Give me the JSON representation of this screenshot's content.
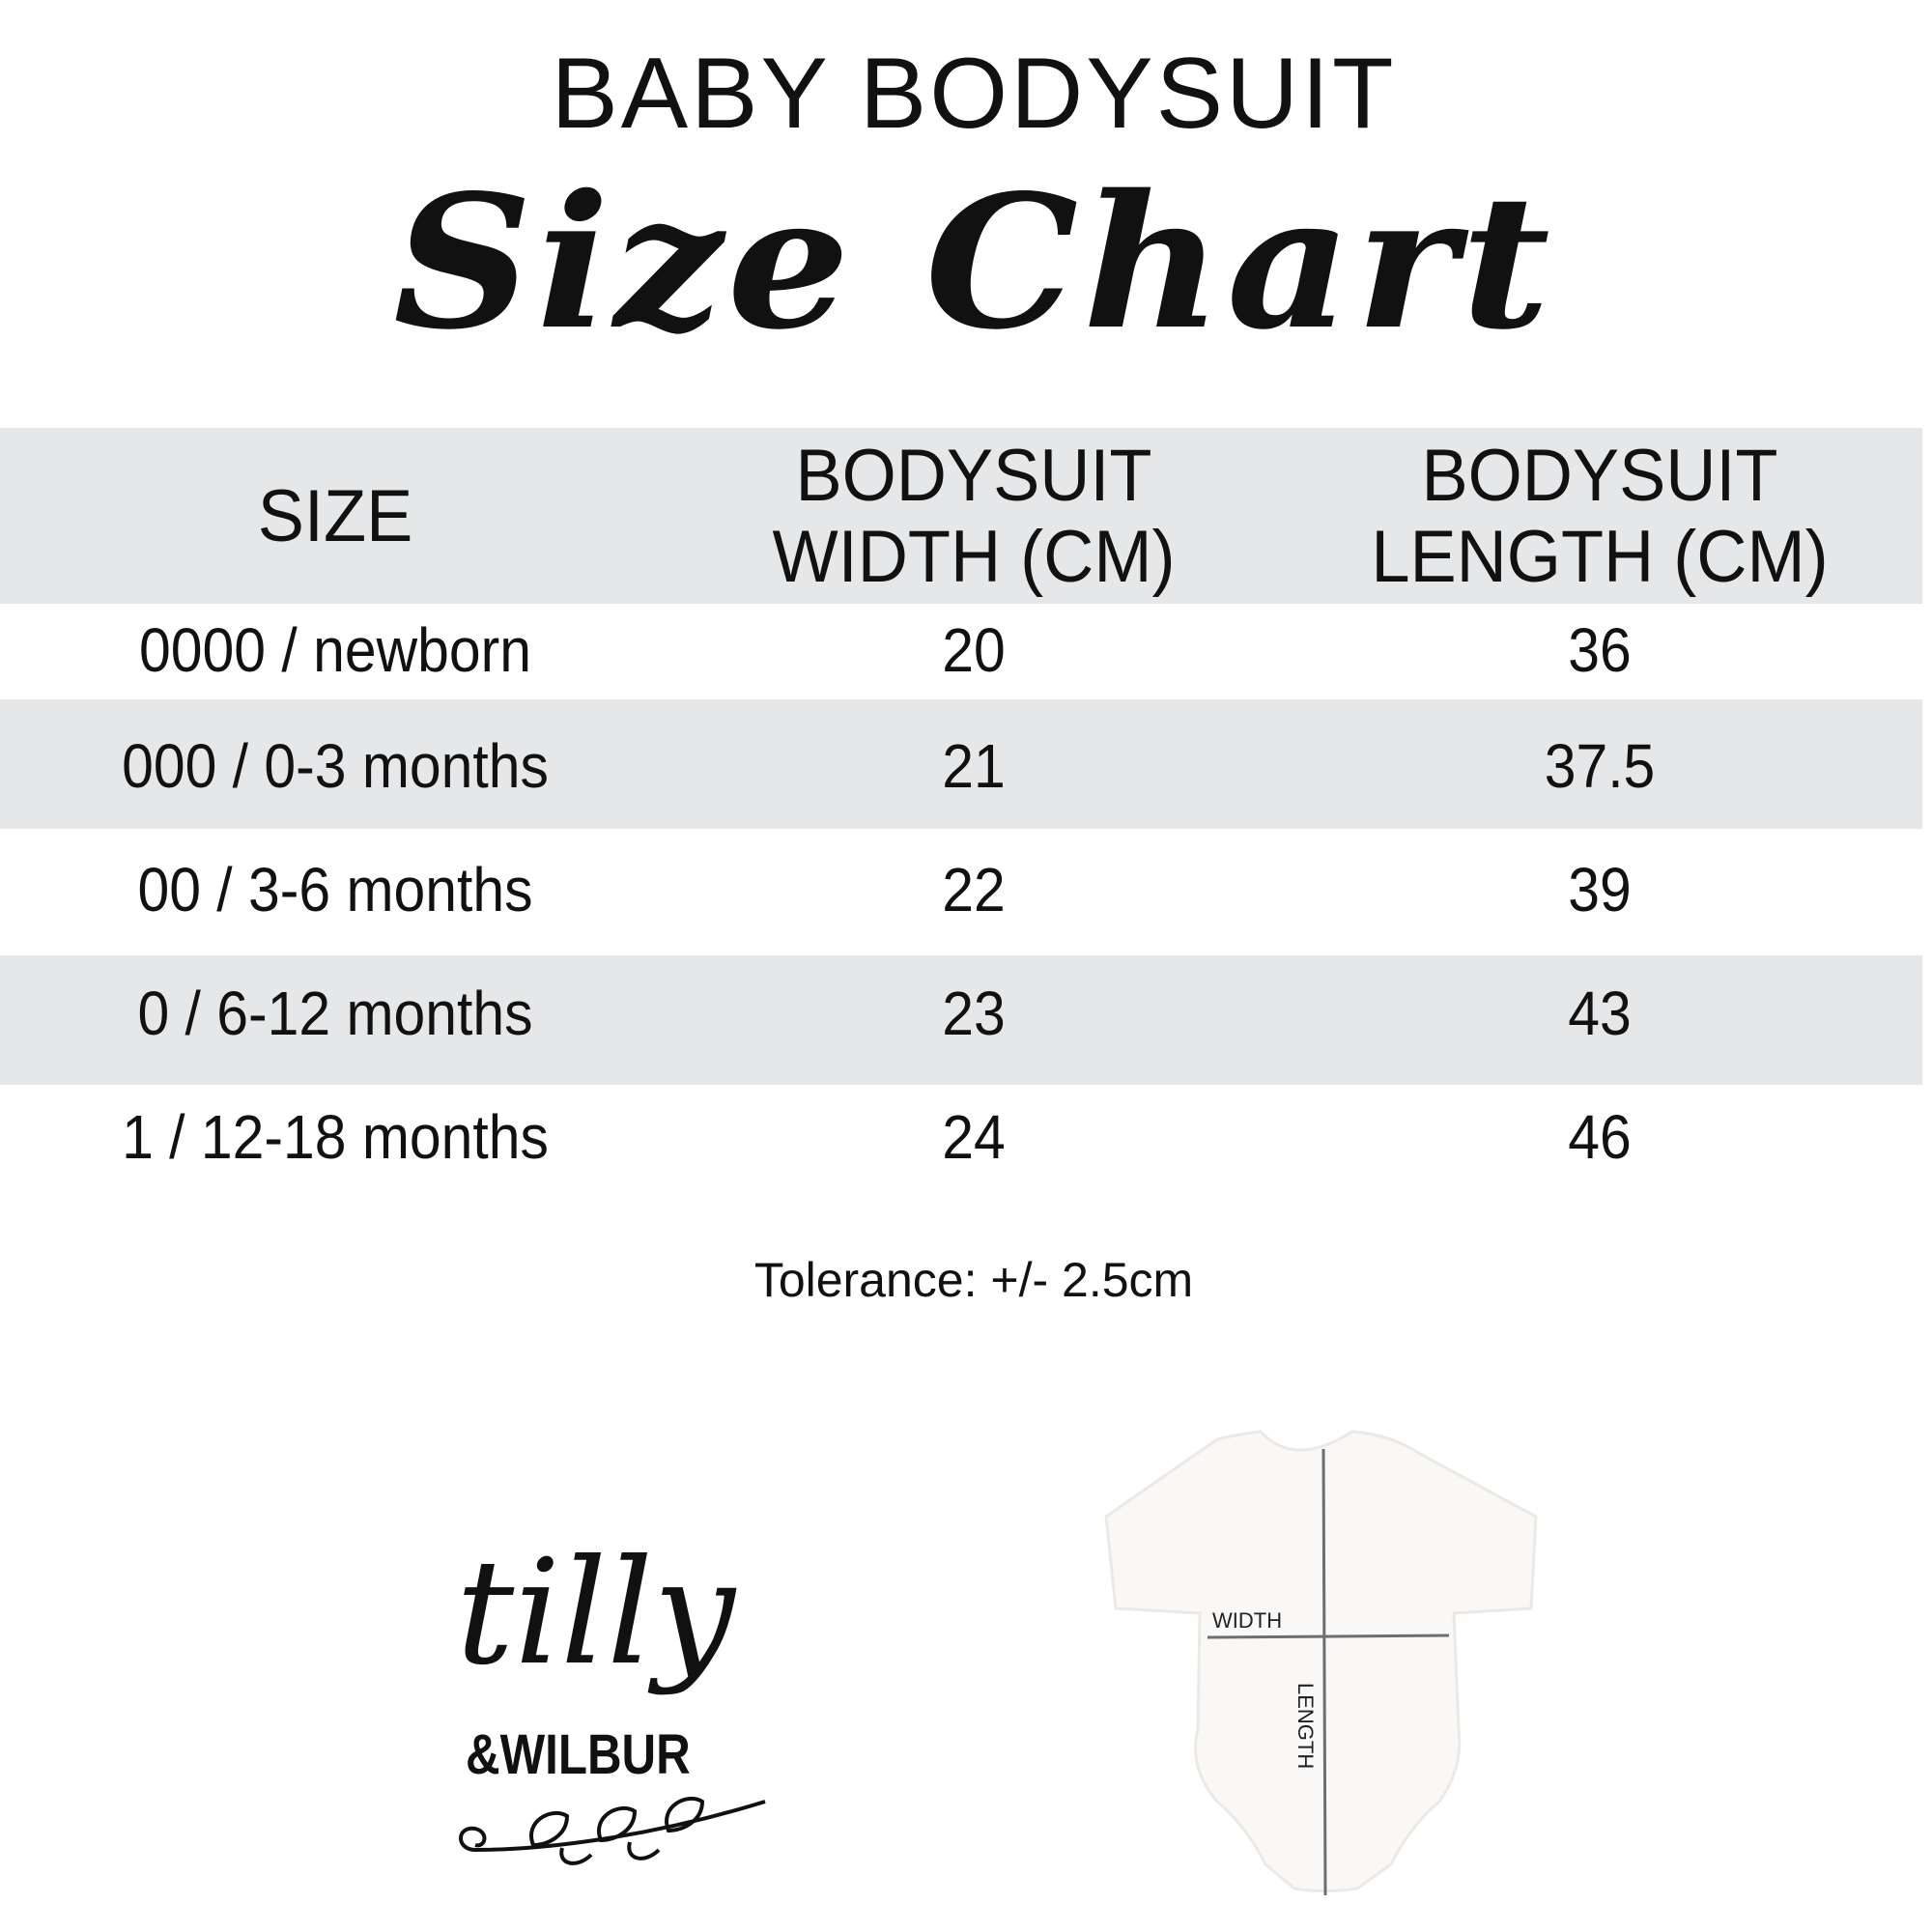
{
  "header": {
    "title": "BABY BODYSUIT",
    "subtitle": "Size Chart"
  },
  "table": {
    "columns": [
      "SIZE",
      "BODYSUIT WIDTH (CM)",
      "BODYSUIT LENGTH (CM)"
    ],
    "column_lines": [
      [
        "SIZE"
      ],
      [
        "BODYSUIT",
        "WIDTH (CM)"
      ],
      [
        "BODYSUIT",
        "LENGTH (CM)"
      ]
    ],
    "rows": [
      {
        "size": "0000 / newborn",
        "width": "20",
        "length": "36"
      },
      {
        "size": "000 / 0-3 months",
        "width": "21",
        "length": "37.5"
      },
      {
        "size": "00 / 3-6 months",
        "width": "22",
        "length": "39"
      },
      {
        "size": "0 / 6-12 months",
        "width": "23",
        "length": "43"
      },
      {
        "size": "1 / 12-18 months",
        "width": "24",
        "length": "46"
      }
    ],
    "band_color": "#e6e7e9"
  },
  "note": "Tolerance: +/- 2.5cm",
  "logo": {
    "line1": "tilly",
    "line2": "&WILBUR"
  },
  "diagram": {
    "width_label": "WIDTH",
    "length_label": "LENGTH",
    "line_color": "#6d6e70"
  }
}
